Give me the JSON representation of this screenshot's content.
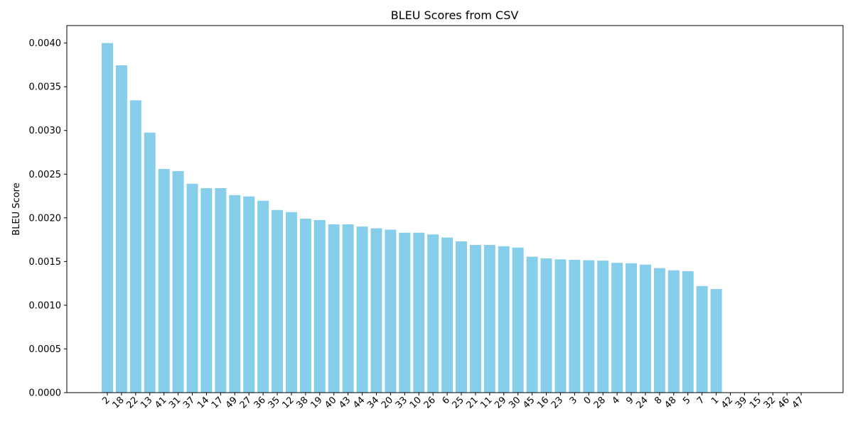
{
  "chart_data": {
    "type": "bar",
    "title": "BLEU Scores from CSV",
    "xlabel": "",
    "ylabel": "BLEU Score",
    "categories": [
      "2",
      "18",
      "22",
      "13",
      "41",
      "31",
      "37",
      "14",
      "17",
      "49",
      "27",
      "36",
      "35",
      "12",
      "38",
      "19",
      "40",
      "43",
      "44",
      "34",
      "20",
      "33",
      "10",
      "26",
      "6",
      "25",
      "21",
      "11",
      "29",
      "30",
      "45",
      "16",
      "23",
      "3",
      "0",
      "28",
      "4",
      "9",
      "24",
      "8",
      "48",
      "5",
      "7",
      "1",
      "42",
      "39",
      "15",
      "32",
      "46",
      "47"
    ],
    "values": [
      0.004,
      0.003745,
      0.003345,
      0.002975,
      0.00256,
      0.002535,
      0.00239,
      0.00234,
      0.00234,
      0.00226,
      0.002245,
      0.002195,
      0.00209,
      0.002065,
      0.00199,
      0.001975,
      0.001925,
      0.001925,
      0.0019,
      0.00188,
      0.001865,
      0.00183,
      0.00183,
      0.00181,
      0.001775,
      0.00173,
      0.00169,
      0.00169,
      0.001675,
      0.00166,
      0.001555,
      0.001535,
      0.001525,
      0.00152,
      0.001515,
      0.00151,
      0.001485,
      0.00148,
      0.001465,
      0.001425,
      0.0014,
      0.00139,
      0.00122,
      0.001185,
      0,
      0,
      0,
      0,
      0,
      0
    ],
    "ylim": [
      0,
      0.0042
    ],
    "yticks": [
      "0.0000",
      "0.0005",
      "0.0010",
      "0.0015",
      "0.0020",
      "0.0025",
      "0.0030",
      "0.0035",
      "0.0040"
    ],
    "bar_color": "#87ceeb",
    "grid": false,
    "legend": "none"
  }
}
